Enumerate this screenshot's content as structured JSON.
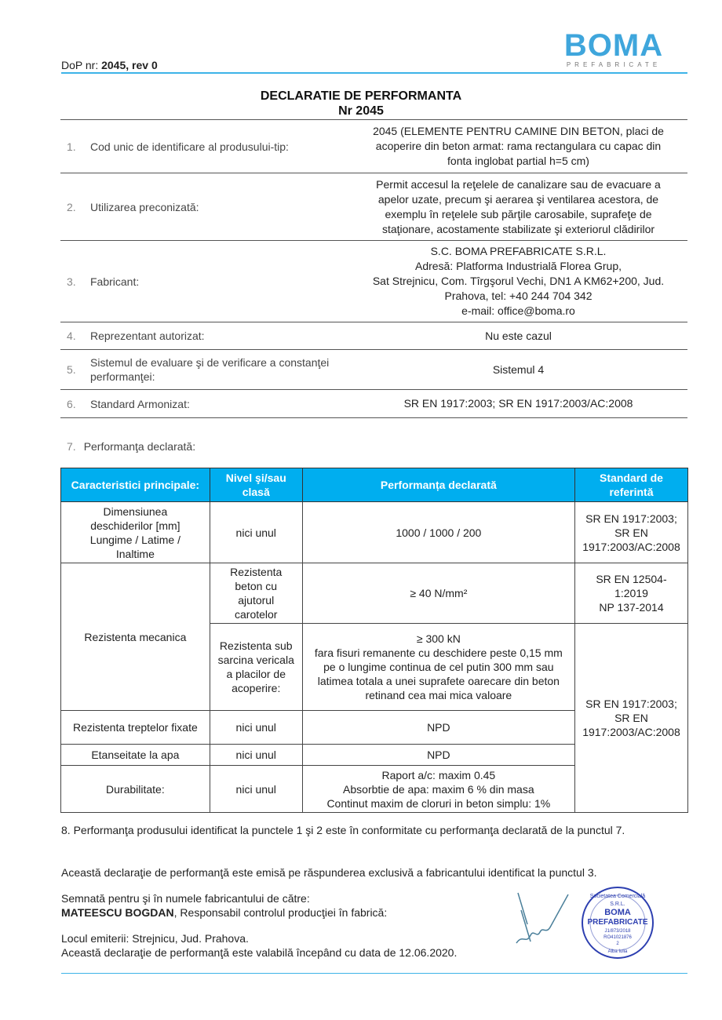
{
  "header": {
    "dop_label": "DoP nr: ",
    "dop_value": "2045, rev 0",
    "logo_text": "BOMA",
    "logo_sub": "PREFABRICATE"
  },
  "title": {
    "line1": "DECLARATIE DE PERFORMANTA",
    "line2": "Nr 2045"
  },
  "sections": [
    {
      "num": "1.",
      "label": "Cod unic de identificare al produsului-tip:",
      "value": [
        "2045 (ELEMENTE PENTRU CAMINE DIN BETON, placi de",
        "acoperire din beton  armat: rama rectangulara cu capac din",
        "fonta inglobat partial h=5 cm)"
      ]
    },
    {
      "num": "2.",
      "label": "Utilizarea preconizată:",
      "value": [
        "Permit accesul la reţelele de canalizare sau de evacuare a",
        "apelor uzate, precum şi aerarea şi ventilarea acestora, de",
        "exemplu în reţelele sub părţile carosabile, suprafeţe de",
        "staţionare, acostamente stabilizate şi exteriorul clădirilor"
      ]
    },
    {
      "num": "3.",
      "label": "Fabricant:",
      "value": [
        "S.C. BOMA PREFABRICATE S.R.L.",
        "Adresă: Platforma Industrială Florea Grup,",
        "Sat Strejnicu, Com. Tîrgşorul Vechi, DN1 A KM62+200, Jud.",
        "Prahova, tel: +40 244 704 342",
        "e-mail: office@boma.ro"
      ]
    },
    {
      "num": "4.",
      "label": "Reprezentant autorizat:",
      "value": [
        "Nu este cazul"
      ]
    },
    {
      "num": "5.",
      "label": "Sistemul de evaluare şi de verificare a constanţei performanţei:",
      "value": [
        "Sistemul 4"
      ]
    },
    {
      "num": "6.",
      "label": "Standard Armonizat:",
      "value": [
        "SR EN 1917:2003; SR EN 1917:2003/AC:2008"
      ]
    }
  ],
  "section7": {
    "num": "7.",
    "label": "Performanţa declarată:"
  },
  "table": {
    "headers": [
      "Caracteristici principale:",
      "Nivel şi/sau clasă",
      "Performanța declarată",
      "Standard de referintă"
    ],
    "r1": [
      "Dimensiunea deschiderilor [mm] Lungime / Latime / Inaltime",
      "nici unul",
      "1000 / 1000 / 200",
      "SR EN 1917:2003; SR EN 1917:2003/AC:2008"
    ],
    "r2_char": "Rezistenta mecanica",
    "r2a": [
      "Rezistenta beton cu ajutorul carotelor",
      "≥ 40 N/mm²",
      "SR EN 12504-1:2019",
      "NP 137-2014"
    ],
    "r2b": [
      "Rezistenta sub sarcina vericala a placilor de acoperire:",
      "≥ 300 kN",
      "fara fisuri remanente cu deschidere peste 0,15 mm pe o lungime continua de cel putin 300 mm sau latimea totala a unei suprafete oarecare din beton retinand cea mai mica valoare"
    ],
    "std_merged": "SR EN 1917:2003; SR EN 1917:2003/AC:2008",
    "r3": [
      "Rezistenta treptelor fixate",
      "nici unul",
      "NPD"
    ],
    "r4": [
      "Etanseitate la apa",
      "nici unul",
      "NPD"
    ],
    "r5": [
      "Durabilitate:",
      "nici unul",
      "Raport a/c: maxim 0.45",
      "Absorbtie de apa: maxim 6 % din masa",
      "Continut maxim de cloruri in beton simplu: 1%"
    ]
  },
  "footer": {
    "p8": "8. Performanţa produsului identificat la punctele 1 şi 2 este în conformitate cu performanţa declarată de la punctul 7.",
    "p_resp": "Această declaraţie de performanţă este emisă pe răspunderea exclusivă a fabricantului identificat la punctul 3.",
    "signed": "Semnată pentru şi în numele fabricantului de către:",
    "signer_name": "MATEESCU BOGDAN",
    "signer_role": ", Responsabil controlul producţiei în fabrică:",
    "place": "Locul emiterii: Strejnicu, Jud. Prahova.",
    "valid": "Această declaraţie de performanţă este valabilă începând cu data de 12.06.2020."
  },
  "stamp": {
    "lines": [
      "Societatea Comercială",
      "S.R.L.",
      "BOMA",
      "PREFABRICATE",
      "J1/873/2018",
      "RO41021876",
      "2",
      "Alba Iulia"
    ]
  },
  "colors": {
    "accent": "#00aeef",
    "logo": "#3fa6dc"
  }
}
